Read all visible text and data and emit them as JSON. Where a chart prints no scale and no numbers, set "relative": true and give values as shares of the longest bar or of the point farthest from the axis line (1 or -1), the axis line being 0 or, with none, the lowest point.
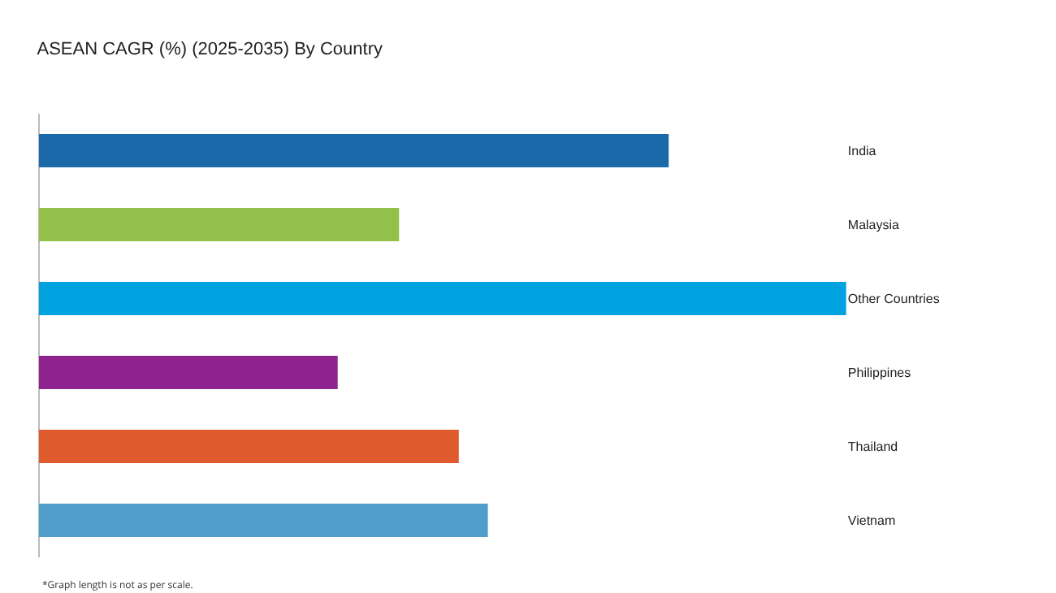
{
  "chart_data": {
    "type": "bar",
    "orientation": "horizontal",
    "relative": true,
    "title": "ASEAN CAGR (%) (2025-2035) By Country",
    "categories": [
      "India",
      "Malaysia",
      "Other Countries",
      "Philippines",
      "Thailand",
      "Vietnam"
    ],
    "values": [
      0.78,
      0.446,
      1,
      0.37,
      0.52,
      0.556
    ],
    "colors": [
      "#1b69a8",
      "#92c04a",
      "#00a3e0",
      "#8e2390",
      "#df5a2c",
      "#519dcc"
    ],
    "annotations": [
      "*Graph length is not as per scale."
    ],
    "grid": false,
    "legend": false
  }
}
